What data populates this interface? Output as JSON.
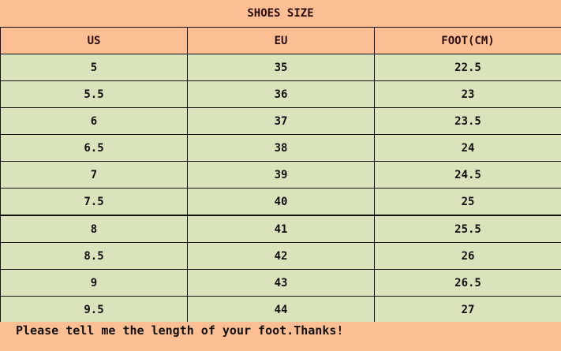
{
  "title": "SHOES SIZE",
  "headers": [
    "US",
    "EU",
    "FOOT(CM)"
  ],
  "rows": [
    [
      "5",
      "35",
      "22.5"
    ],
    [
      "5.5",
      "36",
      "23"
    ],
    [
      "6",
      "37",
      "23.5"
    ],
    [
      "6.5",
      "38",
      "24"
    ],
    [
      "7",
      "39",
      "24.5"
    ],
    [
      "7.5",
      "40",
      "25"
    ],
    [
      "8",
      "41",
      "25.5"
    ],
    [
      "8.5",
      "42",
      "26"
    ],
    [
      "9",
      "43",
      "26.5"
    ],
    [
      "9.5",
      "44",
      "27"
    ]
  ],
  "footer": "Please tell me the length of your foot.Thanks!",
  "colors": {
    "header": "#fcbf93",
    "row": "#d9e4bd"
  }
}
